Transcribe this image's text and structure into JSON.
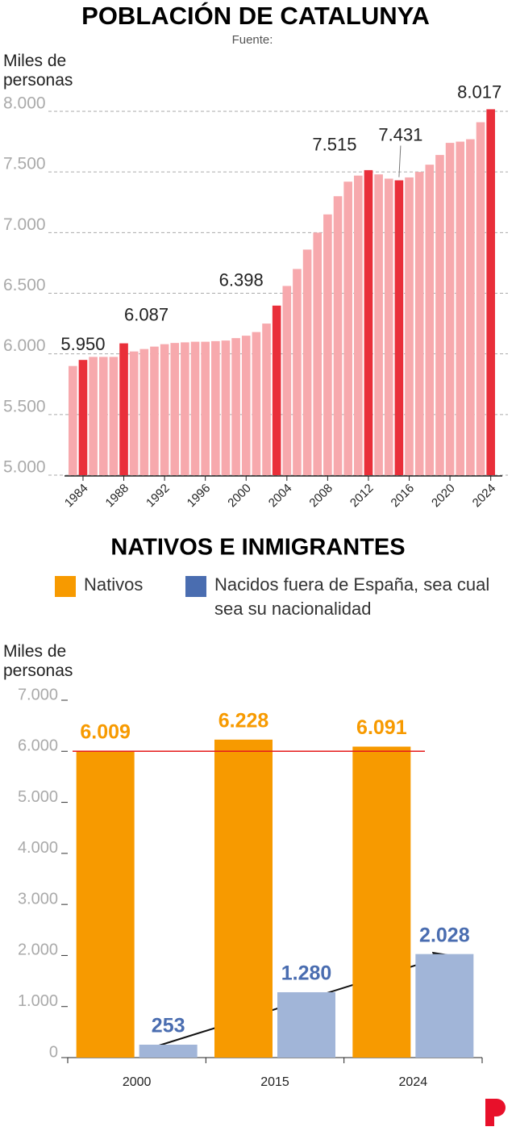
{
  "chart_data": [
    {
      "type": "bar",
      "title": "POBLACIÓN DE CATALUNYA",
      "subtitle": "Fuente:",
      "ylabel": "Miles de personas",
      "categories": [
        null,
        "1984",
        null,
        null,
        null,
        "1988",
        null,
        null,
        null,
        "1992",
        null,
        null,
        null,
        "1996",
        null,
        null,
        null,
        "2000",
        null,
        null,
        null,
        "2004",
        null,
        null,
        null,
        "2008",
        null,
        null,
        null,
        "2012",
        null,
        null,
        null,
        "2016",
        null,
        null,
        null,
        "2020",
        null,
        null,
        null,
        "2024"
      ],
      "values": [
        5900,
        5950,
        5975,
        5975,
        5975,
        6087,
        6020,
        6040,
        6060,
        6080,
        6090,
        6095,
        6100,
        6100,
        6105,
        6110,
        6130,
        6150,
        6180,
        6250,
        6398,
        6560,
        6700,
        6860,
        7000,
        7150,
        7300,
        7420,
        7470,
        7515,
        7480,
        7445,
        7431,
        7455,
        7500,
        7560,
        7640,
        7740,
        7750,
        7770,
        7910,
        8017
      ],
      "value_labels": [
        null,
        "5.950",
        null,
        null,
        null,
        "6.087",
        null,
        null,
        null,
        null,
        null,
        null,
        null,
        null,
        null,
        null,
        null,
        null,
        null,
        null,
        "6.398",
        null,
        null,
        null,
        null,
        null,
        null,
        null,
        null,
        "7.515",
        null,
        null,
        "7.431",
        null,
        null,
        null,
        null,
        null,
        null,
        null,
        null,
        "8.017"
      ],
      "color": "#f7a9ad",
      "highlight_color": "#e92f3a",
      "ylim": [
        5000,
        8000
      ],
      "yticks": [
        {
          "value": 5000,
          "label": "5.000"
        },
        {
          "value": 5500,
          "label": "5.500"
        },
        {
          "value": 6000,
          "label": "6.000"
        },
        {
          "value": 6500,
          "label": "6.500"
        },
        {
          "value": 7000,
          "label": "7.000"
        },
        {
          "value": 7500,
          "label": "7.500"
        },
        {
          "value": 8000,
          "label": "8.000"
        }
      ],
      "grid": true
    },
    {
      "type": "bar",
      "title": "NATIVOS E INMIGRANTES",
      "ylabel": "Miles de personas",
      "categories": [
        "2000",
        "2015",
        "2024"
      ],
      "series": [
        {
          "name": "Nativos",
          "color": "#f79a00",
          "legend_color": "#f79a00",
          "label_color": "#f79a00",
          "values": [
            6009,
            6228,
            6091
          ],
          "value_labels": [
            "6.009",
            "6.228",
            "6.091"
          ]
        },
        {
          "name": "Nacidos fuera de España, sea cual sea su nacionalidad",
          "color": "#a1b5d8",
          "legend_color": "#4a6db0",
          "label_color": "#4a6db0",
          "values": [
            253,
            1280,
            2028
          ],
          "value_labels": [
            "253",
            "1.280",
            "2.028"
          ]
        }
      ],
      "ylim": [
        0,
        7000
      ],
      "yticks": [
        0,
        {
          "value": 1000,
          "label": "1.000"
        },
        {
          "value": 2000,
          "label": "2.000"
        },
        {
          "value": 3000,
          "label": "3.000"
        },
        {
          "value": 4000,
          "label": "4.000"
        },
        {
          "value": 5000,
          "label": "5.000"
        },
        {
          "value": 6000,
          "label": "6.000"
        },
        {
          "value": 7000,
          "label": "7.000"
        }
      ],
      "reference_line": {
        "value": 6000,
        "color": "#e51b1b"
      }
    }
  ]
}
